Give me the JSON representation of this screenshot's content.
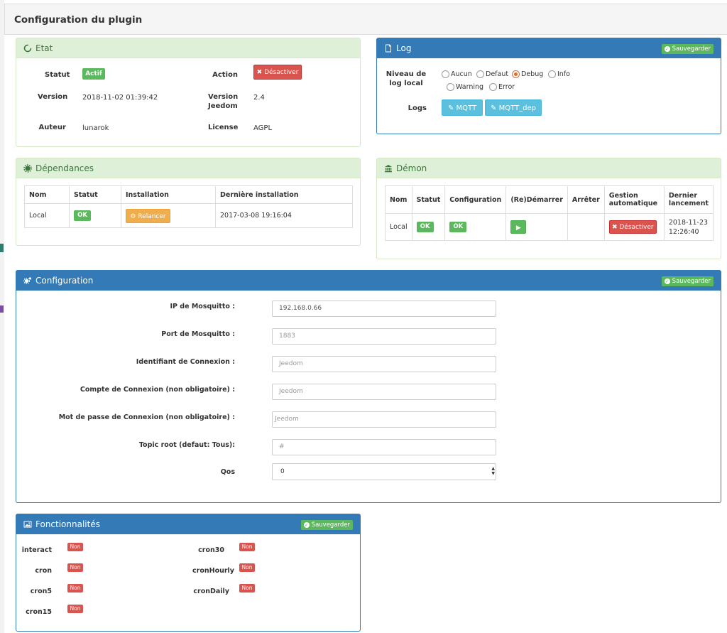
{
  "page_title": "Configuration du plugin",
  "etat": {
    "title": "Etat",
    "statut_label": "Statut",
    "statut_value": "Actif",
    "action_label": "Action",
    "action_button": "Désactiver",
    "version_label": "Version",
    "version_value": "2018-11-02 01:39:42",
    "version_jeedom_label_1": "Version",
    "version_jeedom_label_2": "Jeedom",
    "version_jeedom_value": "2.4",
    "auteur_label": "Auteur",
    "auteur_value": "lunarok",
    "license_label": "License",
    "license_value": "AGPL"
  },
  "log": {
    "title": "Log",
    "save_label": "Sauvegarder",
    "niveau_label_1": "Niveau de",
    "niveau_label_2": "log local",
    "levels": [
      "Aucun",
      "Defaut",
      "Debug",
      "Info",
      "Warning",
      "Error"
    ],
    "selected_level": "Debug",
    "logs_label": "Logs",
    "log_buttons": [
      "MQTT",
      "MQTT_dep"
    ]
  },
  "dependances": {
    "title": "Dépendances",
    "headers": [
      "Nom",
      "Statut",
      "Installation",
      "Dernière installation"
    ],
    "row": {
      "nom": "Local",
      "statut": "OK",
      "installation": "Relancer",
      "derniere": "2017-03-08 19:16:04"
    }
  },
  "demon": {
    "title": "Démon",
    "headers": [
      "Nom",
      "Statut",
      "Configuration",
      "(Re)Démarrer",
      "Arrêter",
      "Gestion",
      "automatique",
      "Dernier",
      "lancement"
    ],
    "row": {
      "nom": "Local",
      "statut": "OK",
      "configuration": "OK",
      "gestion_button": "Désactiver",
      "dernier_1": "2018-11-23",
      "dernier_2": "12:26:40"
    }
  },
  "configuration": {
    "title": "Configuration",
    "save_label": "Sauvegarder",
    "fields": [
      {
        "label": "IP de Mosquitto :",
        "value": "192.168.0.66",
        "placeholder": ""
      },
      {
        "label": "Port de Mosquitto :",
        "value": "",
        "placeholder": "1883"
      },
      {
        "label": "Identifiant de Connexion :",
        "value": "",
        "placeholder": "Jeedom"
      },
      {
        "label": "Compte de Connexion (non obligatoire) :",
        "value": "",
        "placeholder": "Jeedom"
      },
      {
        "label": "Mot de passe de Connexion (non obligatoire) :",
        "value": "",
        "placeholder": "Jeedom"
      },
      {
        "label": "Topic root (defaut: Tous):",
        "value": "",
        "placeholder": "#"
      }
    ],
    "qos_label": "Qos",
    "qos_value": "0"
  },
  "fonctionnalites": {
    "title": "Fonctionnalités",
    "save_label": "Sauvegarder",
    "left": [
      {
        "name": "interact",
        "value": "Non"
      },
      {
        "name": "cron",
        "value": "Non"
      },
      {
        "name": "cron5",
        "value": "Non"
      },
      {
        "name": "cron15",
        "value": "Non"
      }
    ],
    "right": [
      {
        "name": "cron30",
        "value": "Non"
      },
      {
        "name": "cronHourly",
        "value": "Non"
      },
      {
        "name": "cronDaily",
        "value": "Non"
      }
    ]
  },
  "colors": {
    "primary": "#337ab7",
    "success_bg": "#dff0d8",
    "green": "#5cb85c",
    "red": "#d9534f",
    "orange": "#f0ad4e",
    "info": "#5bc0de"
  },
  "icons": {
    "etat": "circle-notch-icon",
    "log": "file-icon",
    "dependances": "gear-icon",
    "demon": "bank-icon",
    "configuration": "cogs-icon",
    "fonctionnalites": "image-icon"
  }
}
